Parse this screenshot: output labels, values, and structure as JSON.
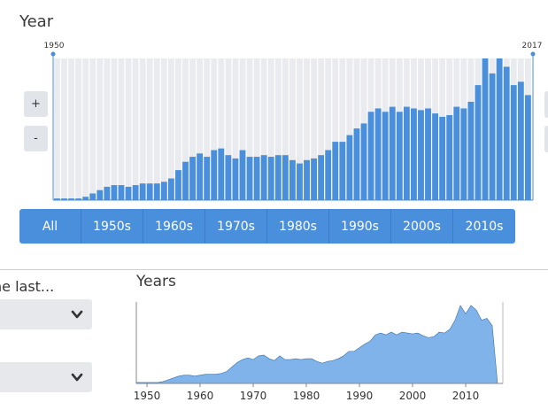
{
  "year_filter": {
    "title": "Year",
    "range_start_label": "1950",
    "range_end_label": "2017",
    "zoom_in_label": "+",
    "zoom_out_label": "-",
    "histogram_values": [
      1,
      1,
      1,
      1,
      2,
      4,
      6,
      8,
      9,
      9,
      8,
      9,
      10,
      10,
      10,
      11,
      13,
      18,
      23,
      26,
      28,
      26,
      30,
      31,
      27,
      25,
      30,
      26,
      26,
      27,
      26,
      27,
      27,
      24,
      22,
      24,
      25,
      27,
      30,
      35,
      35,
      39,
      43,
      46,
      53,
      55,
      53,
      56,
      53,
      56,
      55,
      54,
      55,
      52,
      50,
      51,
      56,
      55,
      59,
      69,
      85,
      76,
      85,
      80,
      69,
      71,
      63
    ],
    "bar_color": "#4a8fdc",
    "background_bar_color": "#e9ebef",
    "decades": [
      "All",
      "1950s",
      "1960s",
      "1970s",
      "1980s",
      "1990s",
      "2000s",
      "2010s"
    ]
  },
  "sidebar": {
    "last_label": "he last..."
  },
  "years_chart": {
    "title": "Years",
    "x_ticks": [
      "1950",
      "1960",
      "1970",
      "1980",
      "1990",
      "2000",
      "2010"
    ],
    "fill_color": "#7fb3ea",
    "stroke_color": "#3c6fa6"
  },
  "chart_data": {
    "type": "area",
    "title": "Years",
    "x": [
      1948,
      1949,
      1950,
      1951,
      1952,
      1953,
      1954,
      1955,
      1956,
      1957,
      1958,
      1959,
      1960,
      1961,
      1962,
      1963,
      1964,
      1965,
      1966,
      1967,
      1968,
      1969,
      1970,
      1971,
      1972,
      1973,
      1974,
      1975,
      1976,
      1977,
      1978,
      1979,
      1980,
      1981,
      1982,
      1983,
      1984,
      1985,
      1986,
      1987,
      1988,
      1989,
      1990,
      1991,
      1992,
      1993,
      1994,
      1995,
      1996,
      1997,
      1998,
      1999,
      2000,
      2001,
      2002,
      2003,
      2004,
      2005,
      2006,
      2007,
      2008,
      2009,
      2010,
      2011,
      2012,
      2013,
      2014,
      2015,
      2016,
      2017
    ],
    "values": [
      1,
      1,
      1,
      1,
      1,
      2,
      4,
      6,
      8,
      9,
      9,
      8,
      9,
      10,
      10,
      10,
      11,
      13,
      18,
      23,
      26,
      28,
      26,
      30,
      31,
      27,
      25,
      30,
      26,
      26,
      27,
      26,
      27,
      27,
      24,
      22,
      24,
      25,
      27,
      30,
      35,
      35,
      39,
      43,
      46,
      53,
      55,
      53,
      56,
      53,
      56,
      55,
      54,
      55,
      52,
      50,
      51,
      56,
      55,
      59,
      69,
      85,
      76,
      85,
      80,
      69,
      71,
      63,
      0,
      0
    ],
    "xlim": [
      1948,
      2017
    ],
    "x_ticks": [
      1950,
      1960,
      1970,
      1980,
      1990,
      2000,
      2010
    ],
    "grid": false,
    "legend": "none"
  }
}
